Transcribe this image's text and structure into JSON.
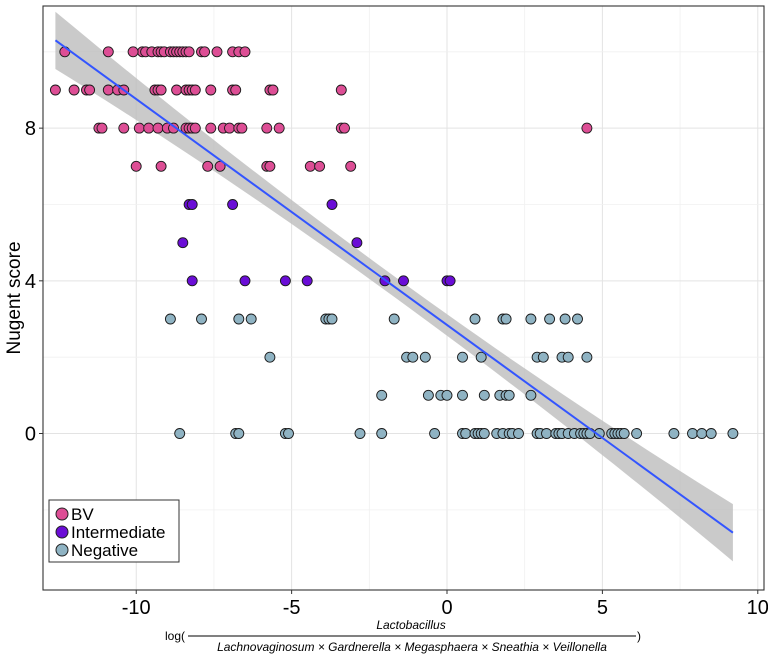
{
  "chart_data": {
    "type": "scatter",
    "ylabel": "Nugent score",
    "xlabel": {
      "prefix": "log(",
      "numerator": "Lactobacillus",
      "denominator": "Lachnovaginosum × Gardnerella × Megasphaera × Sneathia × Veillonella",
      "suffix": ")"
    },
    "xlim": [
      -13.0,
      10.2
    ],
    "ylim": [
      -4.1,
      11.2
    ],
    "xticks": [
      -10,
      -5,
      0,
      5,
      10
    ],
    "yticks": [
      0,
      4,
      8
    ],
    "grid": true,
    "legend_position": "bottom-left",
    "regression": {
      "x_start": -12.6,
      "y_start": 10.3,
      "x_end": 9.2,
      "y_end": -2.6,
      "band_halfwidth_ends": 0.75,
      "band_halfwidth_center": 0.27,
      "line_color": "#3355ff",
      "band_color": "#bdbdbd"
    },
    "series": [
      {
        "name": "BV",
        "color": "#dd4e95",
        "points": [
          [
            -12.3,
            10
          ],
          [
            -9.8,
            10
          ],
          [
            -10.9,
            10
          ],
          [
            -10.1,
            10
          ],
          [
            -9.7,
            10
          ],
          [
            -9.5,
            10
          ],
          [
            -9.3,
            10
          ],
          [
            -9.2,
            10
          ],
          [
            -9.1,
            10
          ],
          [
            -8.9,
            10
          ],
          [
            -8.8,
            10
          ],
          [
            -8.7,
            10
          ],
          [
            -8.6,
            10
          ],
          [
            -8.5,
            10
          ],
          [
            -8.4,
            10
          ],
          [
            -8.3,
            10
          ],
          [
            -7.9,
            10
          ],
          [
            -7.8,
            10
          ],
          [
            -7.4,
            10
          ],
          [
            -6.9,
            10
          ],
          [
            -6.7,
            10
          ],
          [
            -6.5,
            10
          ],
          [
            -12.6,
            9
          ],
          [
            -12.0,
            9
          ],
          [
            -11.6,
            9
          ],
          [
            -11.5,
            9
          ],
          [
            -10.9,
            9
          ],
          [
            -10.6,
            9
          ],
          [
            -10.4,
            9
          ],
          [
            -9.4,
            9
          ],
          [
            -9.3,
            9
          ],
          [
            -9.2,
            9
          ],
          [
            -8.7,
            9
          ],
          [
            -8.4,
            9
          ],
          [
            -8.3,
            9
          ],
          [
            -8.2,
            9
          ],
          [
            -8.1,
            9
          ],
          [
            -7.6,
            9
          ],
          [
            -6.9,
            9
          ],
          [
            -6.8,
            9
          ],
          [
            -5.7,
            9
          ],
          [
            -5.6,
            9
          ],
          [
            -3.4,
            9
          ],
          [
            -11.2,
            8
          ],
          [
            -11.1,
            8
          ],
          [
            -10.4,
            8
          ],
          [
            -9.9,
            8
          ],
          [
            -9.6,
            8
          ],
          [
            -9.3,
            8
          ],
          [
            -9.0,
            8
          ],
          [
            -8.8,
            8
          ],
          [
            -8.4,
            8
          ],
          [
            -8.3,
            8
          ],
          [
            -8.2,
            8
          ],
          [
            -8.1,
            8
          ],
          [
            -7.6,
            8
          ],
          [
            -7.2,
            8
          ],
          [
            -7.0,
            8
          ],
          [
            -6.7,
            8
          ],
          [
            -6.6,
            8
          ],
          [
            -5.8,
            8
          ],
          [
            -5.4,
            8
          ],
          [
            -3.4,
            8
          ],
          [
            -3.3,
            8
          ],
          [
            4.5,
            8
          ],
          [
            -10.0,
            7
          ],
          [
            -9.2,
            7
          ],
          [
            -7.7,
            7
          ],
          [
            -7.3,
            7
          ],
          [
            -5.8,
            7
          ],
          [
            -5.7,
            7
          ],
          [
            -4.4,
            7
          ],
          [
            -4.1,
            7
          ],
          [
            -3.1,
            7
          ]
        ]
      },
      {
        "name": "Intermediate",
        "color": "#6a0dd6",
        "points": [
          [
            -8.3,
            6
          ],
          [
            -8.2,
            6
          ],
          [
            -6.9,
            6
          ],
          [
            -3.7,
            6
          ],
          [
            -8.5,
            5
          ],
          [
            -2.9,
            5
          ],
          [
            -8.2,
            4
          ],
          [
            -6.5,
            4
          ],
          [
            -5.2,
            4
          ],
          [
            -4.5,
            4
          ],
          [
            -2.0,
            4
          ],
          [
            -1.4,
            4
          ],
          [
            0.0,
            4
          ],
          [
            0.1,
            4
          ]
        ]
      },
      {
        "name": "Negative",
        "color": "#8fb3c3",
        "points": [
          [
            -8.9,
            3
          ],
          [
            -7.9,
            3
          ],
          [
            -6.7,
            3
          ],
          [
            -6.3,
            3
          ],
          [
            -3.9,
            3
          ],
          [
            -3.8,
            3
          ],
          [
            -3.7,
            3
          ],
          [
            -1.7,
            3
          ],
          [
            0.9,
            3
          ],
          [
            1.8,
            3
          ],
          [
            1.9,
            3
          ],
          [
            2.7,
            3
          ],
          [
            3.3,
            3
          ],
          [
            3.8,
            3
          ],
          [
            4.2,
            3
          ],
          [
            -5.7,
            2
          ],
          [
            -1.3,
            2
          ],
          [
            -1.1,
            2
          ],
          [
            -0.7,
            2
          ],
          [
            0.5,
            2
          ],
          [
            1.1,
            2
          ],
          [
            2.9,
            2
          ],
          [
            3.1,
            2
          ],
          [
            3.7,
            2
          ],
          [
            3.9,
            2
          ],
          [
            4.5,
            2
          ],
          [
            -2.1,
            1
          ],
          [
            -0.6,
            1
          ],
          [
            -0.2,
            1
          ],
          [
            0.0,
            1
          ],
          [
            0.5,
            1
          ],
          [
            1.2,
            1
          ],
          [
            1.7,
            1
          ],
          [
            1.9,
            1
          ],
          [
            2.0,
            1
          ],
          [
            2.7,
            1
          ],
          [
            -8.6,
            0
          ],
          [
            -6.8,
            0
          ],
          [
            -6.7,
            0
          ],
          [
            -5.2,
            0
          ],
          [
            -5.1,
            0
          ],
          [
            -2.8,
            0
          ],
          [
            -2.1,
            0
          ],
          [
            -0.4,
            0
          ],
          [
            0.5,
            0
          ],
          [
            0.6,
            0
          ],
          [
            0.9,
            0
          ],
          [
            1.0,
            0
          ],
          [
            1.1,
            0
          ],
          [
            1.2,
            0
          ],
          [
            1.6,
            0
          ],
          [
            1.8,
            0
          ],
          [
            2.0,
            0
          ],
          [
            2.1,
            0
          ],
          [
            2.3,
            0
          ],
          [
            2.9,
            0
          ],
          [
            3.0,
            0
          ],
          [
            3.2,
            0
          ],
          [
            3.5,
            0
          ],
          [
            3.6,
            0
          ],
          [
            3.7,
            0
          ],
          [
            3.9,
            0
          ],
          [
            4.1,
            0
          ],
          [
            4.3,
            0
          ],
          [
            4.4,
            0
          ],
          [
            4.5,
            0
          ],
          [
            4.6,
            0
          ],
          [
            4.9,
            0
          ],
          [
            5.3,
            0
          ],
          [
            5.4,
            0
          ],
          [
            5.5,
            0
          ],
          [
            5.6,
            0
          ],
          [
            5.7,
            0
          ],
          [
            6.1,
            0
          ],
          [
            7.3,
            0
          ],
          [
            7.9,
            0
          ],
          [
            8.2,
            0
          ],
          [
            8.5,
            0
          ],
          [
            9.2,
            0
          ]
        ]
      }
    ]
  }
}
